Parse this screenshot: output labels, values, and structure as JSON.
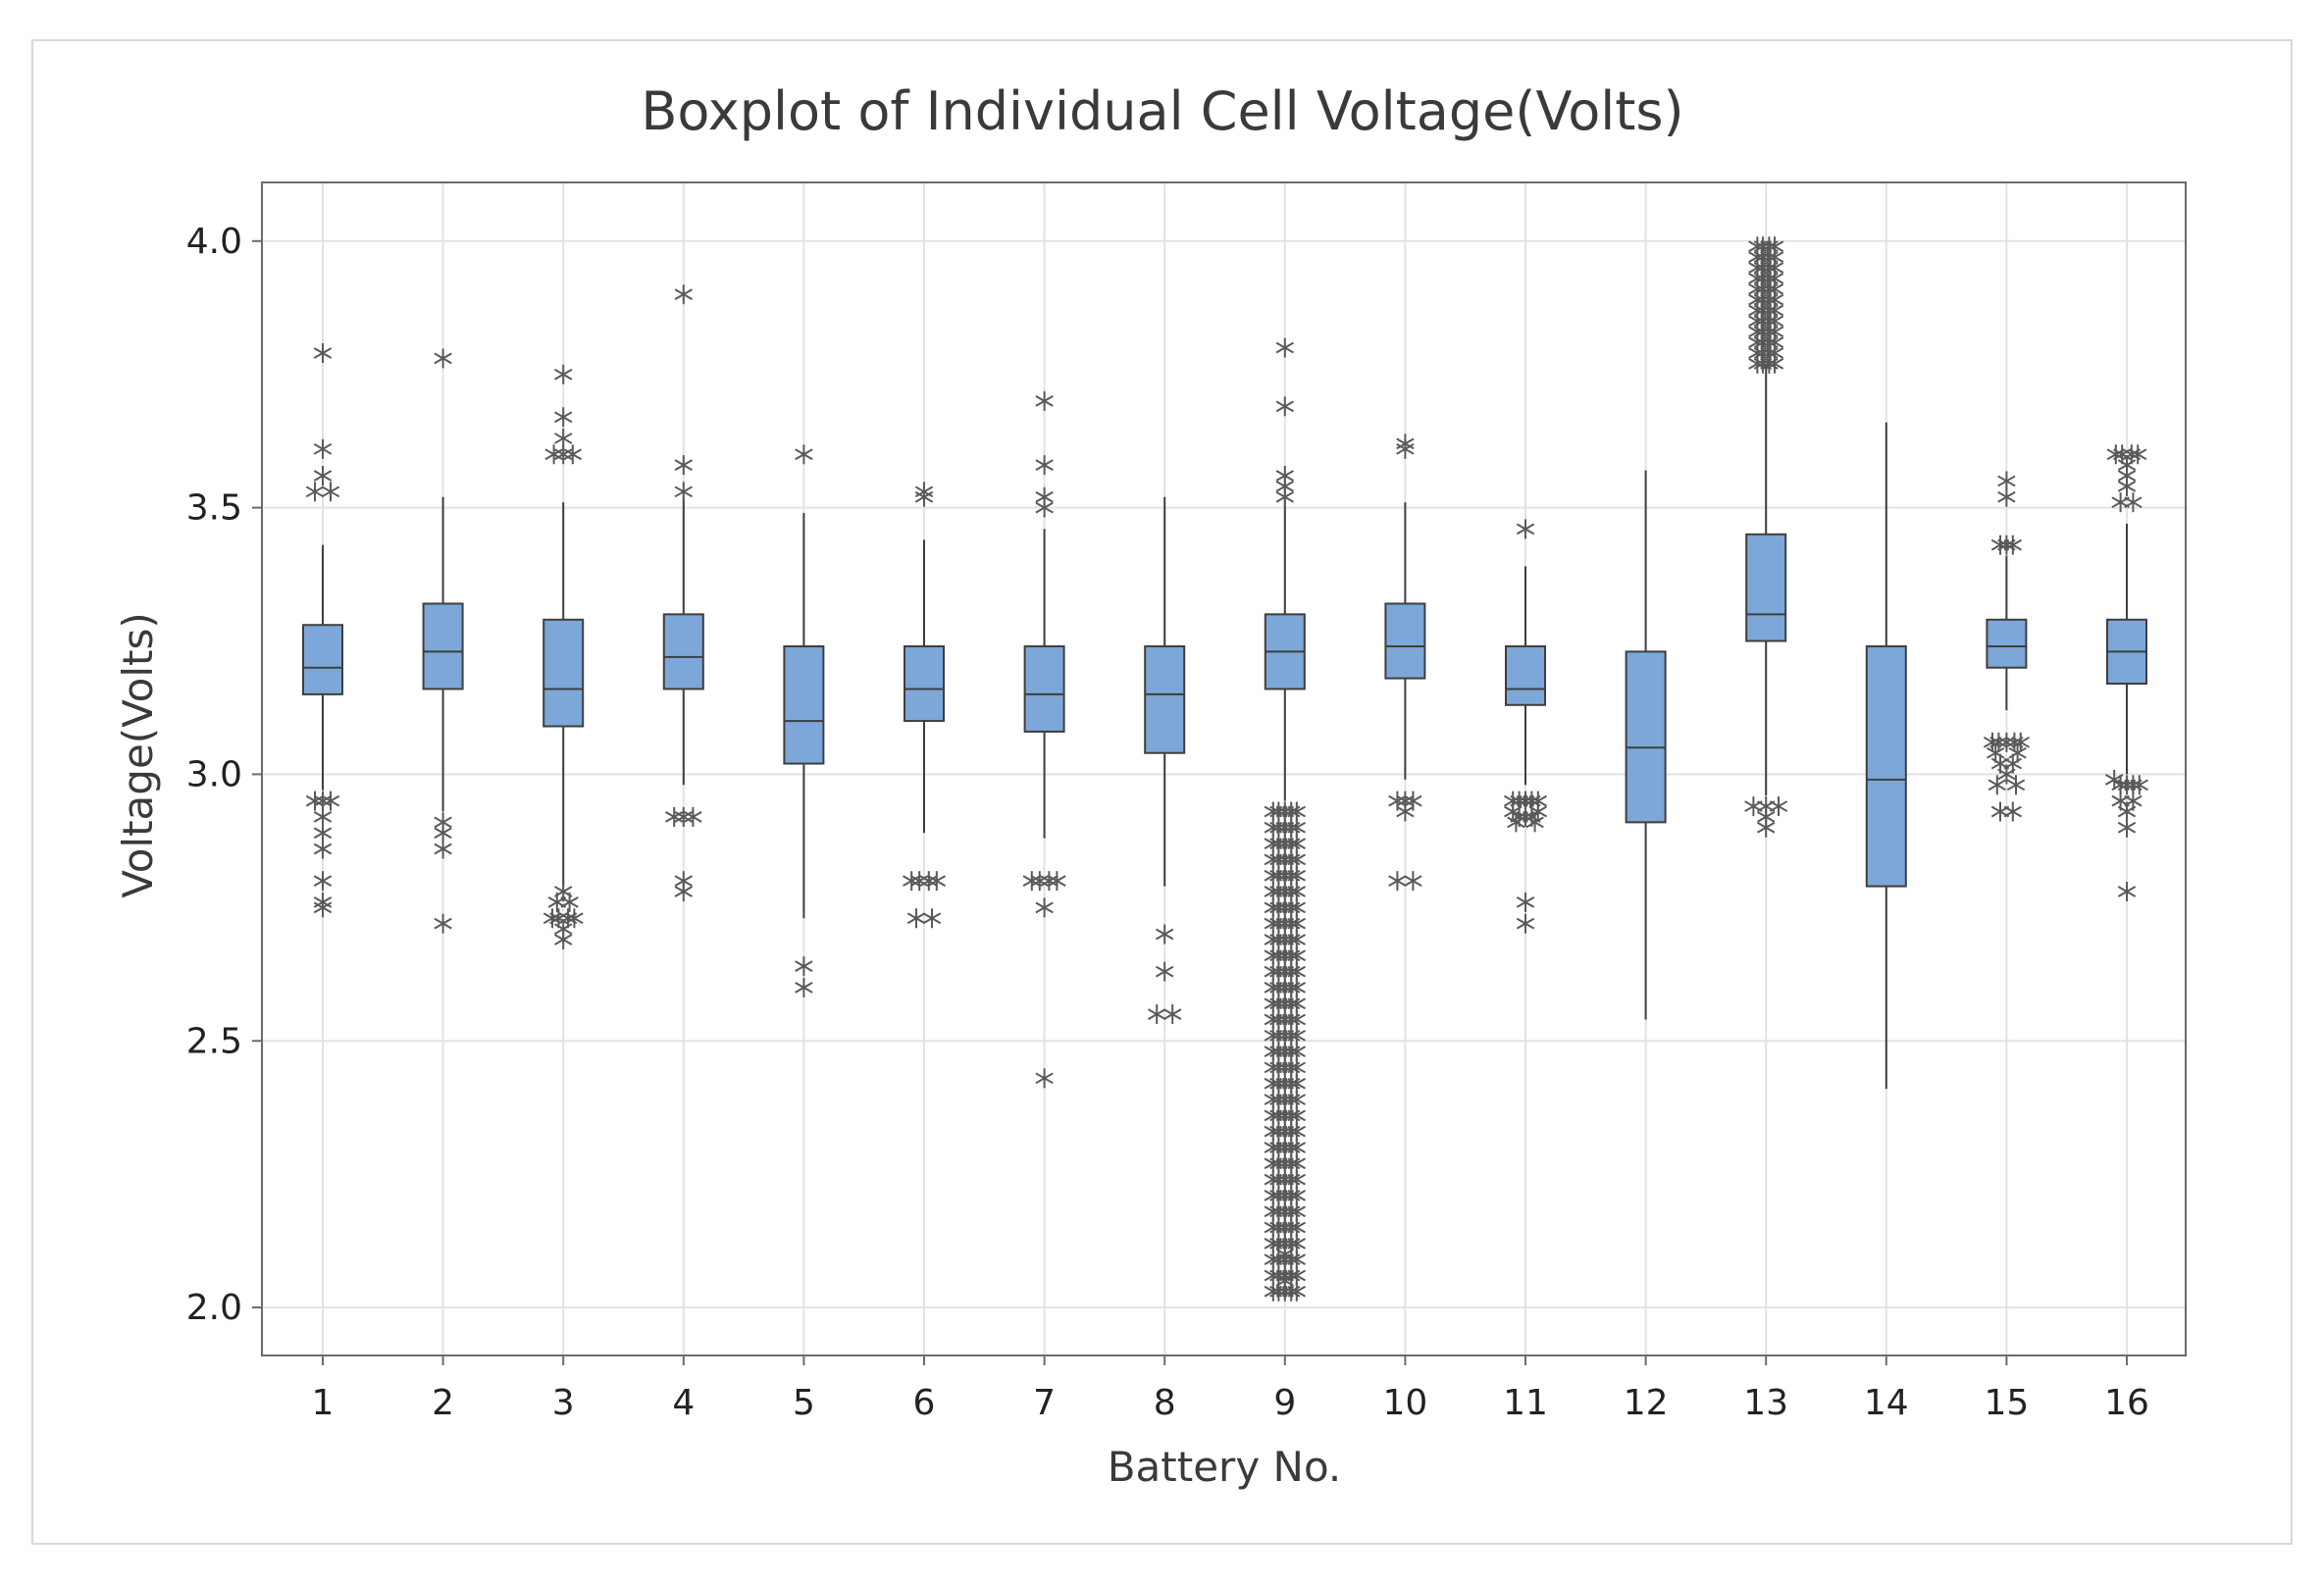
{
  "colors": {
    "box_fill": "#7da7d9",
    "box_stroke": "#3e3e3e",
    "outlier": "#595959",
    "grid": "#e2e2e2",
    "frame": "#6b6b6b"
  },
  "chart_data": {
    "type": "boxplot",
    "title": "Boxplot of Individual Cell Voltage(Volts)",
    "xlabel": "Battery No.",
    "ylabel": "Voltage(Volts)",
    "ylim": [
      1.91,
      4.11
    ],
    "yticks": [
      2.0,
      2.5,
      3.0,
      3.5,
      4.0
    ],
    "ytick_labels": [
      "2.0",
      "2.5",
      "3.0",
      "3.5",
      "4.0"
    ],
    "grid": true,
    "categories": [
      "1",
      "2",
      "3",
      "4",
      "5",
      "6",
      "7",
      "8",
      "9",
      "10",
      "11",
      "12",
      "13",
      "14",
      "15",
      "16"
    ],
    "boxes": [
      {
        "battery": "1",
        "whisker_low": 2.97,
        "q1": 3.15,
        "median": 3.2,
        "q3": 3.28,
        "whisker_high": 3.43,
        "outliers": [
          [
            0,
            3.79
          ],
          [
            0,
            3.61
          ],
          [
            -0.5,
            3.53
          ],
          [
            0.5,
            3.53
          ],
          [
            0,
            3.56
          ],
          [
            -0.5,
            2.95
          ],
          [
            0.5,
            2.95
          ],
          [
            0,
            2.95
          ],
          [
            0,
            2.92
          ],
          [
            0,
            2.89
          ],
          [
            0,
            2.86
          ],
          [
            0,
            2.8
          ],
          [
            0,
            2.76
          ],
          [
            0,
            2.75
          ]
        ]
      },
      {
        "battery": "2",
        "whisker_low": 2.93,
        "q1": 3.16,
        "median": 3.23,
        "q3": 3.32,
        "whisker_high": 3.52,
        "outliers": [
          [
            0,
            3.78
          ],
          [
            0,
            2.91
          ],
          [
            0,
            2.89
          ],
          [
            0,
            2.86
          ],
          [
            0,
            2.72
          ]
        ]
      },
      {
        "battery": "3",
        "whisker_low": 2.79,
        "q1": 3.09,
        "median": 3.16,
        "q3": 3.29,
        "whisker_high": 3.51,
        "outliers": [
          [
            0,
            3.75
          ],
          [
            0,
            3.67
          ],
          [
            0,
            3.63
          ],
          [
            -0.6,
            3.6
          ],
          [
            0,
            3.6
          ],
          [
            0.6,
            3.6
          ],
          [
            0,
            2.78
          ],
          [
            -0.4,
            2.76
          ],
          [
            0.4,
            2.76
          ],
          [
            -0.7,
            2.73
          ],
          [
            -0.3,
            2.73
          ],
          [
            0.3,
            2.73
          ],
          [
            0.7,
            2.73
          ],
          [
            0,
            2.71
          ],
          [
            0,
            2.69
          ]
        ]
      },
      {
        "battery": "4",
        "whisker_low": 2.98,
        "q1": 3.16,
        "median": 3.22,
        "q3": 3.3,
        "whisker_high": 3.52,
        "outliers": [
          [
            0,
            3.9
          ],
          [
            0,
            3.58
          ],
          [
            0,
            3.53
          ],
          [
            -0.6,
            2.92
          ],
          [
            0,
            2.92
          ],
          [
            0.6,
            2.92
          ],
          [
            0,
            2.8
          ],
          [
            0,
            2.78
          ]
        ]
      },
      {
        "battery": "5",
        "whisker_low": 2.73,
        "q1": 3.02,
        "median": 3.1,
        "q3": 3.24,
        "whisker_high": 3.49,
        "outliers": [
          [
            0,
            3.6
          ],
          [
            0,
            2.64
          ],
          [
            0,
            2.6
          ]
        ]
      },
      {
        "battery": "6",
        "whisker_low": 2.89,
        "q1": 3.1,
        "median": 3.16,
        "q3": 3.24,
        "whisker_high": 3.44,
        "outliers": [
          [
            0,
            3.53
          ],
          [
            0,
            3.52
          ],
          [
            -0.8,
            2.8
          ],
          [
            -0.3,
            2.8
          ],
          [
            0.3,
            2.8
          ],
          [
            0.8,
            2.8
          ],
          [
            -0.5,
            2.73
          ],
          [
            0.5,
            2.73
          ]
        ]
      },
      {
        "battery": "7",
        "whisker_low": 2.88,
        "q1": 3.08,
        "median": 3.15,
        "q3": 3.24,
        "whisker_high": 3.46,
        "outliers": [
          [
            0,
            3.7
          ],
          [
            0,
            3.58
          ],
          [
            0,
            3.52
          ],
          [
            0,
            3.5
          ],
          [
            -0.8,
            2.8
          ],
          [
            -0.3,
            2.8
          ],
          [
            0.3,
            2.8
          ],
          [
            0.8,
            2.8
          ],
          [
            0,
            2.75
          ],
          [
            0,
            2.43
          ]
        ]
      },
      {
        "battery": "8",
        "whisker_low": 2.79,
        "q1": 3.04,
        "median": 3.15,
        "q3": 3.24,
        "whisker_high": 3.52,
        "outliers": [
          [
            0,
            2.7
          ],
          [
            0,
            2.63
          ],
          [
            -0.5,
            2.55
          ],
          [
            0.5,
            2.55
          ]
        ]
      },
      {
        "battery": "9",
        "whisker_low": 2.95,
        "q1": 3.16,
        "median": 3.23,
        "q3": 3.3,
        "whisker_high": 3.52,
        "outliers": [
          [
            0,
            3.8
          ],
          [
            0,
            3.69
          ],
          [
            0,
            3.56
          ],
          [
            0,
            3.54
          ],
          [
            0,
            3.52
          ],
          [
            0,
            2.05
          ],
          [
            0,
            2.1
          ],
          [
            0,
            2.15
          ]
        ],
        "outlier_band": {
          "low": 2.03,
          "high": 2.93,
          "step": 0.03,
          "cols": [
            -0.75,
            -0.4,
            0,
            0.4,
            0.75
          ]
        }
      },
      {
        "battery": "10",
        "whisker_low": 2.99,
        "q1": 3.18,
        "median": 3.24,
        "q3": 3.32,
        "whisker_high": 3.51,
        "outliers": [
          [
            0,
            3.62
          ],
          [
            0,
            3.61
          ],
          [
            -0.5,
            2.95
          ],
          [
            0,
            2.95
          ],
          [
            0.5,
            2.95
          ],
          [
            0,
            2.93
          ],
          [
            -0.5,
            2.8
          ],
          [
            0.5,
            2.8
          ]
        ]
      },
      {
        "battery": "11",
        "whisker_low": 2.98,
        "q1": 3.13,
        "median": 3.16,
        "q3": 3.24,
        "whisker_high": 3.39,
        "outliers": [
          [
            0,
            3.46
          ],
          [
            -0.8,
            2.95
          ],
          [
            -0.4,
            2.95
          ],
          [
            0,
            2.95
          ],
          [
            0.4,
            2.95
          ],
          [
            0.8,
            2.95
          ],
          [
            -0.8,
            2.93
          ],
          [
            -0.4,
            2.92
          ],
          [
            0,
            2.92
          ],
          [
            0.4,
            2.92
          ],
          [
            0.8,
            2.93
          ],
          [
            -0.6,
            2.91
          ],
          [
            0.6,
            2.91
          ],
          [
            0,
            2.76
          ],
          [
            0,
            2.72
          ]
        ]
      },
      {
        "battery": "12",
        "whisker_low": 2.54,
        "q1": 2.91,
        "median": 3.05,
        "q3": 3.23,
        "whisker_high": 3.57,
        "outliers": []
      },
      {
        "battery": "13",
        "whisker_low": 2.96,
        "q1": 3.25,
        "median": 3.3,
        "q3": 3.45,
        "whisker_high": 3.77,
        "outliers": [
          [
            -0.8,
            2.94
          ],
          [
            0.8,
            2.94
          ],
          [
            0,
            2.94
          ],
          [
            0,
            2.92
          ],
          [
            0,
            2.9
          ]
        ],
        "outlier_band": {
          "low": 3.77,
          "high": 4.0,
          "step": 0.02,
          "cols": [
            -0.55,
            -0.2,
            0.2,
            0.55
          ]
        }
      },
      {
        "battery": "14",
        "whisker_low": 2.41,
        "q1": 2.79,
        "median": 2.99,
        "q3": 3.24,
        "whisker_high": 3.66,
        "outliers": []
      },
      {
        "battery": "15",
        "whisker_low": 3.12,
        "q1": 3.2,
        "median": 3.24,
        "q3": 3.29,
        "whisker_high": 3.41,
        "outliers": [
          [
            0,
            3.55
          ],
          [
            0,
            3.52
          ],
          [
            -0.4,
            3.43
          ],
          [
            0,
            3.43
          ],
          [
            0.4,
            3.43
          ],
          [
            -0.9,
            3.06
          ],
          [
            -0.5,
            3.06
          ],
          [
            0,
            3.06
          ],
          [
            0.5,
            3.06
          ],
          [
            0.9,
            3.06
          ],
          [
            -0.7,
            3.04
          ],
          [
            0.7,
            3.04
          ],
          [
            -0.4,
            3.02
          ],
          [
            0.4,
            3.02
          ],
          [
            0,
            3.0
          ],
          [
            -0.6,
            2.98
          ],
          [
            0.6,
            2.98
          ],
          [
            -0.4,
            2.93
          ],
          [
            0.4,
            2.93
          ]
        ]
      },
      {
        "battery": "16",
        "whisker_low": 3.0,
        "q1": 3.17,
        "median": 3.23,
        "q3": 3.29,
        "whisker_high": 3.47,
        "outliers": [
          [
            -0.7,
            3.6
          ],
          [
            -0.3,
            3.6
          ],
          [
            0.3,
            3.6
          ],
          [
            0.7,
            3.6
          ],
          [
            0,
            3.58
          ],
          [
            0,
            3.56
          ],
          [
            0,
            3.54
          ],
          [
            -0.4,
            3.51
          ],
          [
            0.4,
            3.51
          ],
          [
            -0.8,
            2.99
          ],
          [
            -0.4,
            2.98
          ],
          [
            0,
            2.98
          ],
          [
            0.4,
            2.98
          ],
          [
            0.8,
            2.98
          ],
          [
            -0.4,
            2.95
          ],
          [
            0.4,
            2.95
          ],
          [
            0,
            2.93
          ],
          [
            0,
            2.9
          ],
          [
            0,
            2.78
          ]
        ]
      }
    ]
  }
}
